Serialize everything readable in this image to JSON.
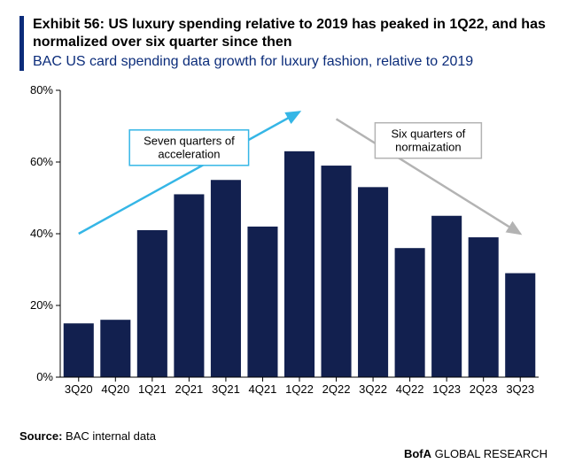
{
  "header": {
    "exhibit_title": "Exhibit 56: US luxury spending relative to 2019 has peaked in 1Q22, and has normalized over six quarter since then",
    "subtitle": "BAC US card spending data growth for luxury fashion, relative to 2019",
    "accent_color": "#0b2c7a"
  },
  "chart": {
    "type": "bar",
    "categories": [
      "3Q20",
      "4Q20",
      "1Q21",
      "2Q21",
      "3Q21",
      "4Q21",
      "1Q22",
      "2Q22",
      "3Q22",
      "4Q22",
      "1Q23",
      "2Q23",
      "3Q23"
    ],
    "values": [
      15,
      16,
      41,
      51,
      55,
      42,
      63,
      59,
      53,
      36,
      45,
      39,
      29
    ],
    "bar_color": "#12204f",
    "background_color": "#ffffff",
    "ylim": [
      0,
      80
    ],
    "ytick_step": 20,
    "ytick_suffix": "%",
    "axis_text_fontsize": 13,
    "axis_text_color": "#000000",
    "axis_line_color": "#000000",
    "tick_length": 5,
    "bar_gap_ratio": 0.18,
    "annotations": [
      {
        "id": "accel",
        "label": "Seven quarters of\nacceleration",
        "box_border_color": "#35b6e6",
        "box_fill": "#ffffff",
        "text_color": "#000000",
        "arrow_color": "#35b6e6",
        "arrow_from_bar_index": 0,
        "arrow_to_bar_index": 6,
        "arrow_y_from_pct": 40,
        "arrow_y_to_pct": 74
      },
      {
        "id": "norm",
        "label": "Six quarters of\nnormaization",
        "box_border_color": "#b3b3b3",
        "box_fill": "#ffffff",
        "text_color": "#000000",
        "arrow_color": "#b3b3b3",
        "arrow_from_bar_index": 7,
        "arrow_to_bar_index": 12,
        "arrow_y_from_pct": 72,
        "arrow_y_to_pct": 40
      }
    ]
  },
  "source": {
    "prefix": "Source:",
    "text": "BAC internal data"
  },
  "footer": {
    "bold_part": "BofA",
    "rest": " GLOBAL RESEARCH"
  }
}
